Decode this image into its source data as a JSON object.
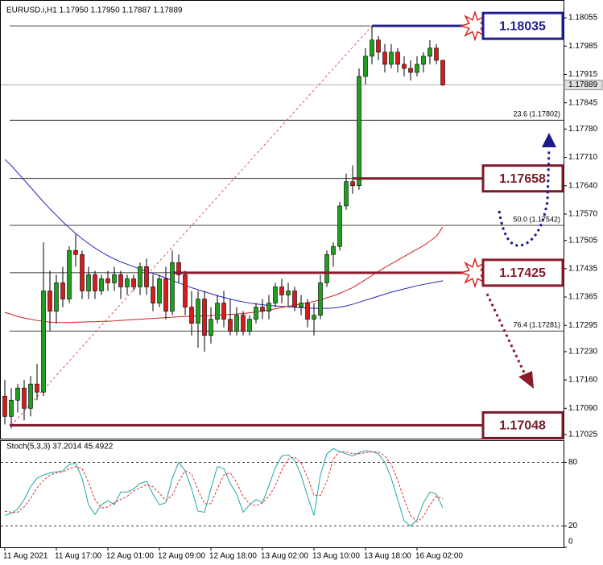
{
  "chart_data": [
    {
      "type": "candlestick",
      "title": "EURUSD.i,H1  1.17950 1.17950 1.17887 1.17889",
      "categories": [
        "11 Aug 2021",
        null,
        null,
        null,
        null,
        null,
        null,
        null,
        "11 Aug 17:00",
        null,
        null,
        null,
        null,
        null,
        null,
        null,
        "12 Aug 01:00",
        null,
        null,
        null,
        null,
        null,
        null,
        null,
        "12 Aug 09:00",
        null,
        null,
        null,
        null,
        null,
        null,
        null,
        "12 Aug 18:00",
        null,
        null,
        null,
        null,
        null,
        null,
        null,
        "13 Aug 02:00",
        null,
        null,
        null,
        null,
        null,
        null,
        null,
        "13 Aug 10:00",
        null,
        null,
        null,
        null,
        null,
        null,
        null,
        "13 Aug 18:00",
        null,
        null,
        null,
        null,
        null,
        null,
        null,
        "16 Aug 02:00",
        null,
        null,
        null,
        null
      ],
      "open": [
        1.1712,
        1.1707,
        1.1711,
        1.1714,
        1.1709,
        1.1715,
        1.1713,
        1.1738,
        1.1733,
        1.174,
        1.1736,
        1.1748,
        1.1747,
        1.1738,
        1.1742,
        1.1738,
        1.1741,
        1.174,
        1.1742,
        1.1739,
        1.1741,
        1.1739,
        1.1744,
        1.1739,
        1.1735,
        1.1741,
        1.1733,
        1.1745,
        1.1742,
        1.1734,
        1.173,
        1.1736,
        1.1727,
        1.1731,
        1.1735,
        1.1731,
        1.1728,
        1.1732,
        1.1728,
        1.1731,
        1.1734,
        1.1733,
        1.1735,
        1.1739,
        1.1737,
        1.1738,
        1.1734,
        1.1735,
        1.1731,
        1.1732,
        1.174,
        1.1747,
        1.1749,
        1.1759,
        1.1765,
        1.1764,
        1.1791,
        1.1796,
        1.18,
        1.1797,
        1.1794,
        1.1797,
        1.1794,
        1.1793,
        1.1792,
        1.1794,
        1.1796,
        1.1798,
        1.1795
      ],
      "high": [
        1.1716,
        1.1714,
        1.1715,
        1.1716,
        1.1717,
        1.172,
        1.175,
        1.1743,
        1.1742,
        1.1744,
        1.1749,
        1.1752,
        1.1748,
        1.1744,
        1.1743,
        1.1742,
        1.1743,
        1.1744,
        1.1743,
        1.1742,
        1.1742,
        1.1745,
        1.1746,
        1.1742,
        1.1742,
        1.1744,
        1.1748,
        1.1747,
        1.1743,
        1.1738,
        1.1738,
        1.1738,
        1.1734,
        1.1737,
        1.1738,
        1.1736,
        1.1734,
        1.1733,
        1.1732,
        1.1735,
        1.1736,
        1.1737,
        1.174,
        1.1741,
        1.174,
        1.1739,
        1.1737,
        1.1736,
        1.1735,
        1.1742,
        1.1748,
        1.175,
        1.176,
        1.1767,
        1.1769,
        1.1793,
        1.1798,
        1.18035,
        1.1801,
        1.1799,
        1.1799,
        1.1798,
        1.1796,
        1.1795,
        1.1796,
        1.1797,
        1.18,
        1.1799,
        1.1795
      ],
      "low": [
        1.1705,
        1.1704,
        1.1708,
        1.1706,
        1.1707,
        1.1711,
        1.1712,
        1.1728,
        1.173,
        1.1734,
        1.1735,
        1.1744,
        1.1736,
        1.1736,
        1.1736,
        1.1737,
        1.1738,
        1.1738,
        1.1736,
        1.1737,
        1.1738,
        1.1737,
        1.1737,
        1.1733,
        1.1734,
        1.1731,
        1.1732,
        1.174,
        1.1732,
        1.1727,
        1.1724,
        1.1723,
        1.1725,
        1.173,
        1.1729,
        1.1727,
        1.1727,
        1.1727,
        1.1727,
        1.173,
        1.1731,
        1.1731,
        1.1734,
        1.1735,
        1.1734,
        1.1733,
        1.1732,
        1.1729,
        1.1727,
        1.1731,
        1.1739,
        1.1744,
        1.1748,
        1.1758,
        1.1762,
        1.1763,
        1.1789,
        1.1794,
        1.1795,
        1.1792,
        1.1793,
        1.1792,
        1.1791,
        1.179,
        1.1791,
        1.1792,
        1.1794,
        1.1794,
        1.17887
      ],
      "close": [
        1.1707,
        1.1711,
        1.1714,
        1.1709,
        1.1715,
        1.1713,
        1.1738,
        1.1733,
        1.174,
        1.1736,
        1.1748,
        1.1747,
        1.1738,
        1.1742,
        1.1738,
        1.1741,
        1.174,
        1.1742,
        1.1739,
        1.1741,
        1.1739,
        1.1744,
        1.1739,
        1.1735,
        1.1741,
        1.1733,
        1.1745,
        1.1742,
        1.1734,
        1.173,
        1.1736,
        1.1727,
        1.1731,
        1.1735,
        1.1731,
        1.1728,
        1.1732,
        1.1728,
        1.1731,
        1.1734,
        1.1733,
        1.1735,
        1.1739,
        1.1737,
        1.1738,
        1.1734,
        1.1735,
        1.1731,
        1.1732,
        1.174,
        1.1747,
        1.1749,
        1.1759,
        1.1765,
        1.1764,
        1.1791,
        1.1796,
        1.18,
        1.1797,
        1.1794,
        1.1797,
        1.1794,
        1.1793,
        1.1792,
        1.1794,
        1.1796,
        1.1798,
        1.1795,
        1.17889
      ],
      "up_color": "#1f9e1f",
      "down_color": "#d41c1c",
      "series": [
        {
          "color": "#2323b8",
          "values": [
            1.17705,
            1.1769,
            1.17672,
            1.17654,
            1.17636,
            1.17618,
            1.176,
            1.17583,
            1.17567,
            1.17551,
            1.17536,
            1.17522,
            1.17509,
            1.17497,
            1.17486,
            1.17476,
            1.17467,
            1.17459,
            1.17452,
            1.17446,
            1.1744,
            1.17434,
            1.17428,
            1.17423,
            1.17418,
            1.17412,
            1.17406,
            1.174,
            1.17394,
            1.17388,
            1.17383,
            1.17378,
            1.17373,
            1.17368,
            1.17364,
            1.1736,
            1.17356,
            1.17353,
            1.1735,
            1.17348,
            1.17346,
            1.17344,
            1.17343,
            1.17342,
            1.17341,
            1.1734,
            1.17339,
            1.17338,
            1.17337,
            1.17337,
            1.17337,
            1.17338,
            1.1734,
            1.17343,
            1.17347,
            1.17352,
            1.17357,
            1.17362,
            1.17367,
            1.17372,
            1.17377,
            1.17381,
            1.17385,
            1.17389,
            1.17393,
            1.17396,
            1.17399,
            1.17402,
            1.17405
          ]
        },
        {
          "color": "#cc2020",
          "values": [
            1.17327,
            1.17322,
            1.17317,
            1.17313,
            1.1731,
            1.17307,
            1.17305,
            1.17303,
            1.17302,
            1.17302,
            1.17302,
            1.17303,
            1.17303,
            1.17304,
            1.17304,
            1.17305,
            1.17305,
            1.17306,
            1.17307,
            1.17308,
            1.17309,
            1.1731,
            1.17311,
            1.17312,
            1.17313,
            1.17314,
            1.17315,
            1.17316,
            1.17317,
            1.17317,
            1.17318,
            1.17318,
            1.17319,
            1.1732,
            1.17321,
            1.17322,
            1.17323,
            1.17324,
            1.17326,
            1.17328,
            1.1733,
            1.17333,
            1.17336,
            1.17339,
            1.17342,
            1.17345,
            1.17348,
            1.17351,
            1.17354,
            1.17358,
            1.17363,
            1.17368,
            1.17374,
            1.17381,
            1.17388,
            1.17398,
            1.17408,
            1.17418,
            1.17428,
            1.17438,
            1.17447,
            1.17456,
            1.17465,
            1.17474,
            1.17483,
            1.17492,
            1.17503,
            1.17515,
            1.17538
          ]
        }
      ],
      "key_levels": [
        {
          "value": 1.18035,
          "color": "#1f1f8f"
        },
        {
          "value": 1.17658,
          "color": "#7a1a2a"
        },
        {
          "value": 1.17425,
          "color": "#8a1a2a"
        },
        {
          "value": 1.17048,
          "color": "#7a1a2a"
        }
      ],
      "fib_levels": [
        {
          "value": 1.17802,
          "label": "23.6 (1.17802)"
        },
        {
          "value": 1.17542,
          "label": "50.0 (1.17542)"
        },
        {
          "value": 1.17281,
          "label": "76.4 (1.17281)"
        }
      ],
      "current_price": 1.17889,
      "ylim": [
        1.17015,
        1.18089
      ],
      "yticks": [
        1.18055,
        1.17985,
        1.17915,
        1.17845,
        {
          "value": 1.1778,
          "label": "1.17780"
        },
        {
          "value": 1.1771,
          "label": "1.17710"
        },
        {
          "value": 1.1764,
          "label": "1.17640"
        },
        {
          "value": 1.1757,
          "label": "1.17570"
        },
        1.17505,
        1.17435,
        1.17365,
        1.17295,
        {
          "value": 1.1723,
          "label": "1.17230"
        },
        {
          "value": 1.1716,
          "label": "1.17160"
        },
        {
          "value": 1.1709,
          "label": "1.17090"
        },
        1.17025
      ]
    },
    {
      "type": "line",
      "title": "Stoch(5,3,3) 37.2014 45.4922",
      "series": [
        {
          "color": "#1fa8a8",
          "values": [
            30,
            32,
            36,
            45,
            57,
            65,
            68,
            70,
            71,
            72,
            78,
            79,
            65,
            40,
            31,
            40,
            44,
            40,
            52,
            52,
            55,
            60,
            62,
            50,
            40,
            42,
            65,
            80,
            72,
            55,
            34,
            33,
            55,
            76,
            74,
            60,
            50,
            33,
            40,
            45,
            42,
            58,
            75,
            86,
            87,
            82,
            68,
            48,
            30,
            68,
            88,
            93,
            90,
            88,
            86,
            89,
            91,
            90,
            88,
            80,
            65,
            45,
            25,
            20,
            26,
            42,
            52,
            50,
            37.2014
          ]
        },
        {
          "color": "#e03030",
          "dash": true,
          "values": [
            34,
            33,
            33,
            38,
            46,
            56,
            63,
            68,
            70,
            71,
            74,
            76,
            74,
            61,
            45,
            37,
            38,
            42,
            45,
            48,
            53,
            56,
            59,
            57,
            51,
            44,
            49,
            62,
            72,
            69,
            54,
            41,
            41,
            55,
            68,
            70,
            61,
            48,
            41,
            39,
            42,
            48,
            58,
            73,
            83,
            85,
            79,
            66,
            49,
            49,
            62,
            83,
            90,
            90,
            88,
            88,
            89,
            90,
            90,
            86,
            78,
            63,
            45,
            30,
            24,
            29,
            40,
            48,
            45.4922
          ]
        }
      ],
      "levels": [
        80,
        20
      ],
      "ylim": [
        0,
        100
      ],
      "yticks": [
        0,
        20,
        80
      ]
    }
  ]
}
